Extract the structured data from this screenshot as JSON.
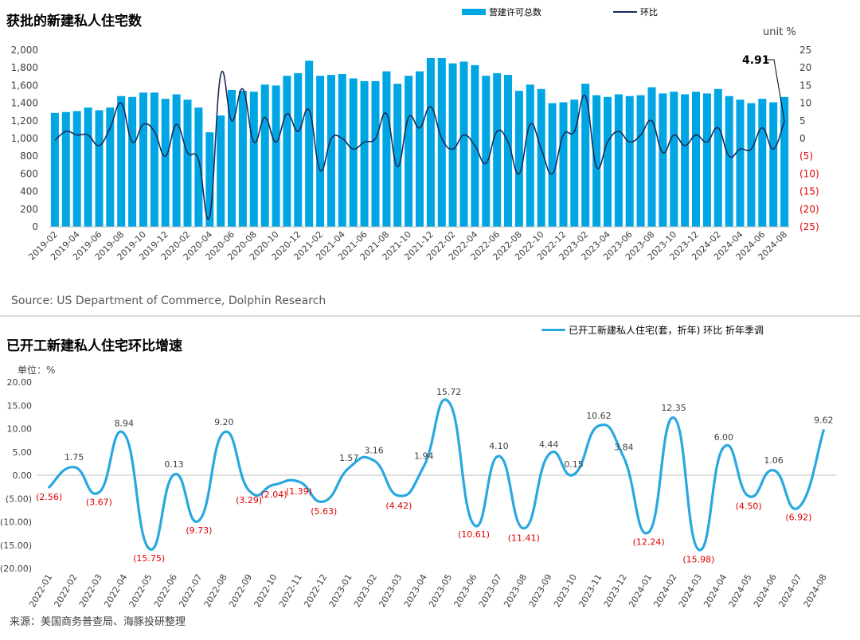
{
  "chart_data": [
    {
      "type": "bar",
      "title": "获批的新建私人住宅数",
      "legend": [
        "营建许可总数",
        "环比"
      ],
      "right_unit": "unit %",
      "source": "Source: US Department of Commerce, Dolphin Research",
      "left_ylim": [
        0,
        2000
      ],
      "left_yticks": [
        "2,000",
        "1,800",
        "1,600",
        "1,400",
        "1,200",
        "1,000",
        "800",
        "600",
        "400",
        "200",
        "0"
      ],
      "right_ylim": [
        -25,
        25
      ],
      "right_yticks": [
        "25",
        "20",
        "15",
        "10",
        "5",
        "0",
        "(5)",
        "(10)",
        "(15)",
        "(20)",
        "(25)"
      ],
      "categories": [
        "2019-02",
        "2019-03",
        "2019-04",
        "2019-05",
        "2019-06",
        "2019-07",
        "2019-08",
        "2019-09",
        "2019-10",
        "2019-11",
        "2019-12",
        "2020-01",
        "2020-02",
        "2020-03",
        "2020-04",
        "2020-05",
        "2020-06",
        "2020-07",
        "2020-08",
        "2020-09",
        "2020-10",
        "2020-11",
        "2020-12",
        "2021-01",
        "2021-02",
        "2021-03",
        "2021-04",
        "2021-05",
        "2021-06",
        "2021-07",
        "2021-08",
        "2021-09",
        "2021-10",
        "2021-11",
        "2021-12",
        "2022-01",
        "2022-02",
        "2022-03",
        "2022-04",
        "2022-05",
        "2022-06",
        "2022-07",
        "2022-08",
        "2022-09",
        "2022-10",
        "2022-11",
        "2022-12",
        "2023-01",
        "2023-02",
        "2023-03",
        "2023-04",
        "2023-05",
        "2023-06",
        "2023-07",
        "2023-08",
        "2023-09",
        "2023-10",
        "2023-11",
        "2023-12",
        "2024-01",
        "2024-02",
        "2024-03",
        "2024-04",
        "2024-05",
        "2024-06",
        "2024-07",
        "2024-08"
      ],
      "xticklabels": [
        "2019-02",
        "2019-04",
        "2019-06",
        "2019-08",
        "2019-10",
        "2019-12",
        "2020-02",
        "2020-04",
        "2020-06",
        "2020-08",
        "2020-10",
        "2020-12",
        "2021-02",
        "2021-04",
        "2021-06",
        "2021-08",
        "2021-10",
        "2021-12",
        "2022-02",
        "2022-04",
        "2022-06",
        "2022-08",
        "2022-10",
        "2022-12",
        "2023-02",
        "2023-04",
        "2023-06",
        "2023-08",
        "2023-10",
        "2023-12",
        "2024-02",
        "2024-04",
        "2024-06",
        "2024-08"
      ],
      "series": [
        {
          "name": "营建许可总数",
          "type": "bar",
          "color": "#00a6e3",
          "values": [
            1290,
            1300,
            1310,
            1350,
            1320,
            1350,
            1480,
            1470,
            1520,
            1520,
            1450,
            1500,
            1440,
            1350,
            1070,
            1260,
            1550,
            1540,
            1530,
            1610,
            1600,
            1710,
            1740,
            1880,
            1710,
            1720,
            1730,
            1680,
            1650,
            1650,
            1760,
            1620,
            1710,
            1760,
            1910,
            1910,
            1850,
            1870,
            1830,
            1710,
            1740,
            1720,
            1540,
            1610,
            1560,
            1400,
            1410,
            1440,
            1620,
            1490,
            1470,
            1500,
            1480,
            1490,
            1580,
            1510,
            1530,
            1500,
            1530,
            1510,
            1560,
            1480,
            1440,
            1400,
            1450,
            1410,
            1470
          ]
        },
        {
          "name": "环比",
          "type": "line",
          "color": "#1a2a5a",
          "values": [
            -0.5,
            2,
            1,
            1,
            -2,
            3,
            10,
            -1,
            4,
            2,
            -5,
            4,
            -4,
            -6,
            -22,
            18,
            5,
            14,
            -1,
            6,
            -1,
            7,
            2,
            8,
            -9,
            0,
            0,
            -3,
            -1,
            0,
            7,
            -8,
            6,
            3,
            9,
            0,
            -3,
            1,
            -2,
            -7,
            2,
            -1,
            -10,
            4,
            -3,
            -10,
            1,
            2,
            12,
            -8,
            -1,
            2,
            -1,
            1,
            5,
            -4,
            1,
            -2,
            1,
            -1,
            3,
            -5,
            -3,
            -3,
            3,
            -3,
            4.91
          ]
        }
      ],
      "annotation": "4.91"
    },
    {
      "type": "line",
      "title": "已开工新建私人住宅环比增速",
      "legend": [
        "已开工新建私人住宅(套，折年) 环比 折年季调"
      ],
      "left_unit": "单位：%",
      "source": "来源：美国商务普查局、海豚投研整理",
      "ylim": [
        -20,
        20
      ],
      "yticks": [
        "20.00",
        "15.00",
        "10.00",
        "5.00",
        "0.00",
        "(5.00)",
        "(10.00)",
        "(15.00)",
        "(20.00)"
      ],
      "categories": [
        "2022-01",
        "2022-02",
        "2022-03",
        "2022-04",
        "2022-05",
        "2022-06",
        "2022-07",
        "2022-08",
        "2022-09",
        "2022-10",
        "2022-11",
        "2022-12",
        "2023-01",
        "2023-02",
        "2023-03",
        "2023-04",
        "2023-05",
        "2023-06",
        "2023-07",
        "2023-08",
        "2023-09",
        "2023-10",
        "2023-11",
        "2023-12",
        "2024-01",
        "2024-02",
        "2024-03",
        "2024-04",
        "2024-05",
        "2024-06",
        "2024-07",
        "2024-08"
      ],
      "series": [
        {
          "name": "已开工新建私人住宅(套，折年) 环比 折年季调",
          "color": "#29a8e0",
          "values": [
            -2.56,
            1.75,
            -3.67,
            8.94,
            -15.75,
            0.13,
            -9.73,
            9.2,
            -3.29,
            -2.04,
            -1.39,
            -5.63,
            1.57,
            3.16,
            -4.42,
            1.94,
            15.72,
            -10.61,
            4.1,
            -11.41,
            4.44,
            0.15,
            10.62,
            3.84,
            -12.24,
            12.35,
            -15.98,
            6.0,
            -4.5,
            1.06,
            -6.92,
            9.62
          ]
        }
      ],
      "data_labels": [
        "(2.56)",
        "1.75",
        "(3.67)",
        "8.94",
        "(15.75)",
        "0.13",
        "(9.73)",
        "9.20",
        "(3.29)",
        "(2.04)",
        "(1.39)",
        "(5.63)",
        "1.57",
        "3.16",
        "(4.42)",
        "1.94",
        "15.72",
        "(10.61)",
        "4.10",
        "(11.41)",
        "4.44",
        "0.15",
        "10.62",
        "3.84",
        "(12.24)",
        "12.35",
        "(15.98)",
        "6.00",
        "(4.50)",
        "1.06",
        "(6.92)",
        "9.62"
      ]
    }
  ]
}
